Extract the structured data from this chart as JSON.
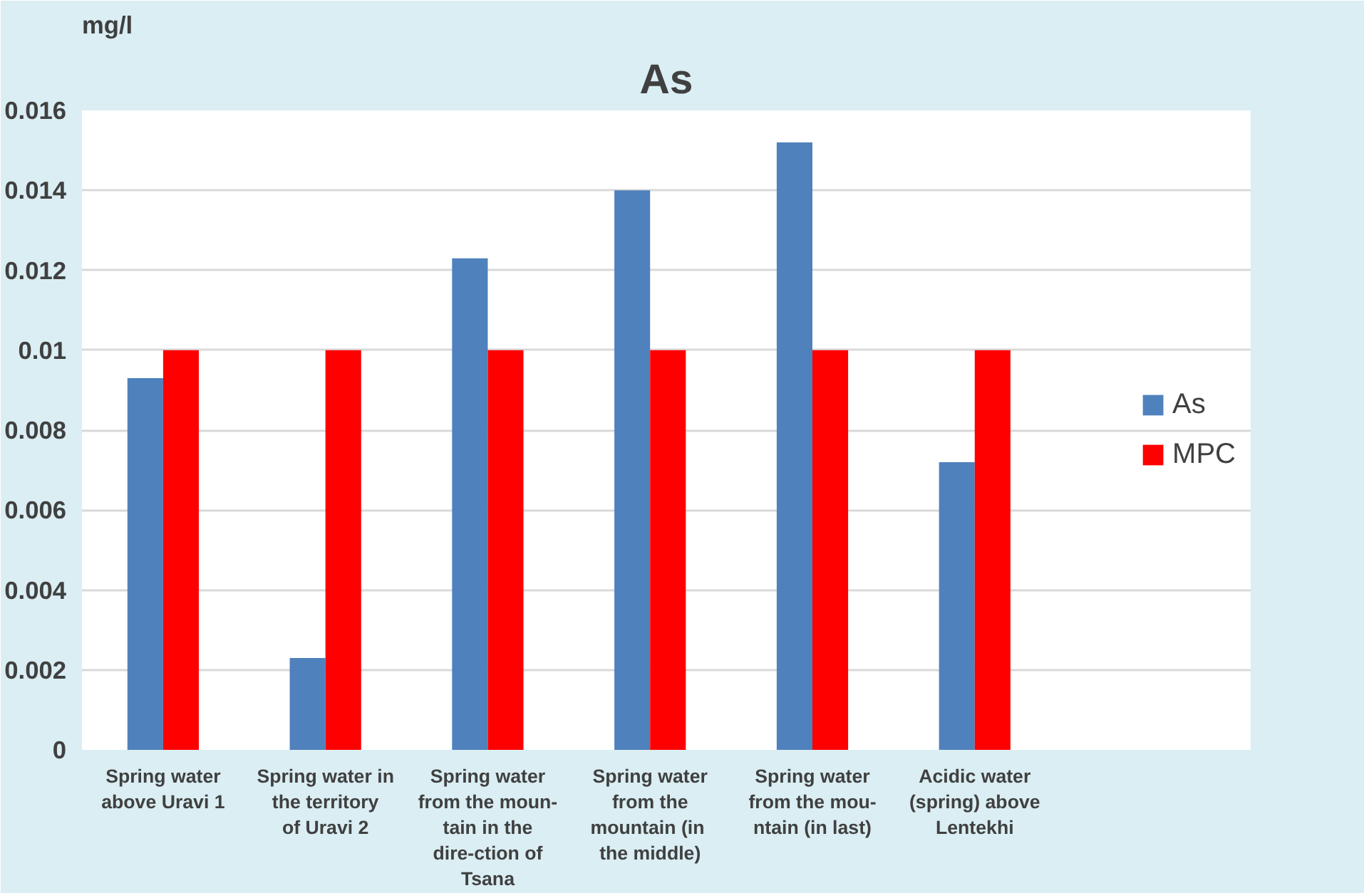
{
  "chart_data": {
    "type": "bar",
    "title": "As",
    "ylabel": "mg/l",
    "categories": [
      "Spring water above Uravi 1",
      "Spring water in the territory of Uravi 2",
      "Spring water from the moun-tain in the dire-ction of Tsana",
      "Spring water from the mountain  (in the middle)",
      "Spring water from the mou-ntain (in last)",
      "Acidic water (spring) above Lentekhi"
    ],
    "series": [
      {
        "name": "As",
        "color": "#4f81bd",
        "values": [
          0.0093,
          0.0023,
          0.0123,
          0.014,
          0.0152,
          0.0072
        ]
      },
      {
        "name": "MPC",
        "color": "#ff0000",
        "values": [
          0.01,
          0.01,
          0.01,
          0.01,
          0.01,
          0.01
        ]
      }
    ],
    "ylim": [
      0,
      0.016
    ],
    "yticks": [
      {
        "value": 0,
        "label": "0"
      },
      0.002,
      0.004,
      0.006,
      0.008,
      {
        "value": 0.01,
        "label": "0.01"
      },
      0.012,
      0.014,
      0.016
    ],
    "grid": "y",
    "legend": "right"
  }
}
